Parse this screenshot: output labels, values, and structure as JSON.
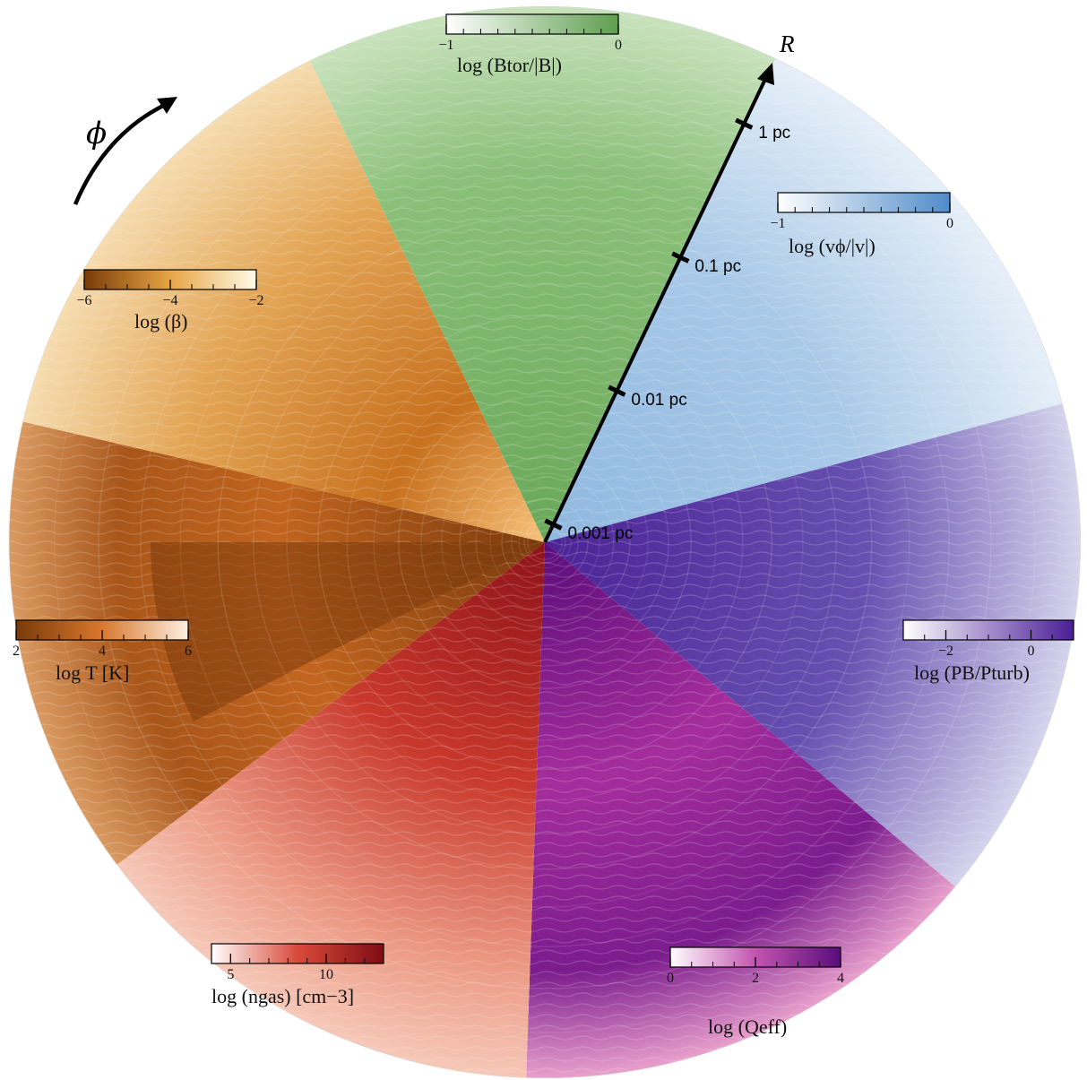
{
  "axis": {
    "r_symbol": "R",
    "phi_symbol": "ϕ",
    "ticks": [
      {
        "label": "0.001 pc",
        "r": 0.001
      },
      {
        "label": "0.01 pc",
        "r": 0.01
      },
      {
        "label": "0.1 pc",
        "r": 0.1
      },
      {
        "label": "1 pc",
        "r": 1
      }
    ]
  },
  "panels": [
    {
      "id": "btor",
      "quantity": "log(Btor/|B|)",
      "color_low": "#ffffff",
      "color_high": "#5e9e4e",
      "fill": "#7bb568",
      "colorbar": {
        "label": "log (Btor/|B|)",
        "tick_labels": [
          "−1",
          "0"
        ],
        "range": [
          -1,
          0
        ]
      }
    },
    {
      "id": "vphi",
      "quantity": "log(vφ/|v|)",
      "color_low": "#ffffff",
      "color_high": "#4f8bc9",
      "fill": "#9dc1e3",
      "colorbar": {
        "label": "log (vϕ/|v|)",
        "tick_labels": [
          "−1",
          "0"
        ],
        "range": [
          -1,
          0
        ]
      }
    },
    {
      "id": "pb",
      "quantity": "log(PB/Pturb)",
      "color_low": "#ffffff",
      "color_high": "#4a1d96",
      "fill": "#6a4fb3",
      "colorbar": {
        "label": "log (PB/Pturb)",
        "tick_labels": [
          "−2",
          "0"
        ],
        "range": [
          -3,
          1
        ]
      }
    },
    {
      "id": "qeff",
      "quantity": "log(Qeff)",
      "color_low": "#ffffff",
      "color_high": "#6a0f7a",
      "fill": "#b0309a",
      "colorbar": {
        "label": "log (Qeff)",
        "tick_labels": [
          "0",
          "2",
          "4"
        ],
        "range": [
          0,
          4
        ]
      }
    },
    {
      "id": "ngas",
      "quantity": "log(ngas) [cm−3]",
      "color_low": "#ffffff",
      "color_high": "#8a0f16",
      "fill": "#cf4a3a",
      "colorbar": {
        "label": "log (ngas) [cm−3]",
        "tick_labels": [
          "5",
          "10"
        ],
        "range": [
          4,
          13
        ]
      }
    },
    {
      "id": "temp",
      "quantity": "log T [K]",
      "color_low": "#7a3a08",
      "color_high": "#fde9d2",
      "fill": "#c46a26",
      "colorbar": {
        "label": "log T [K]",
        "tick_labels": [
          "2",
          "4",
          "6"
        ],
        "range": [
          2,
          6
        ]
      }
    },
    {
      "id": "beta",
      "quantity": "log(β)",
      "color_low": "#7a3a08",
      "color_high": "#fffbe8",
      "fill": "#d8913f",
      "colorbar": {
        "label": "log (β)",
        "tick_labels": [
          "−6",
          "−4",
          "−2"
        ],
        "range": [
          -6,
          -2
        ]
      }
    }
  ]
}
